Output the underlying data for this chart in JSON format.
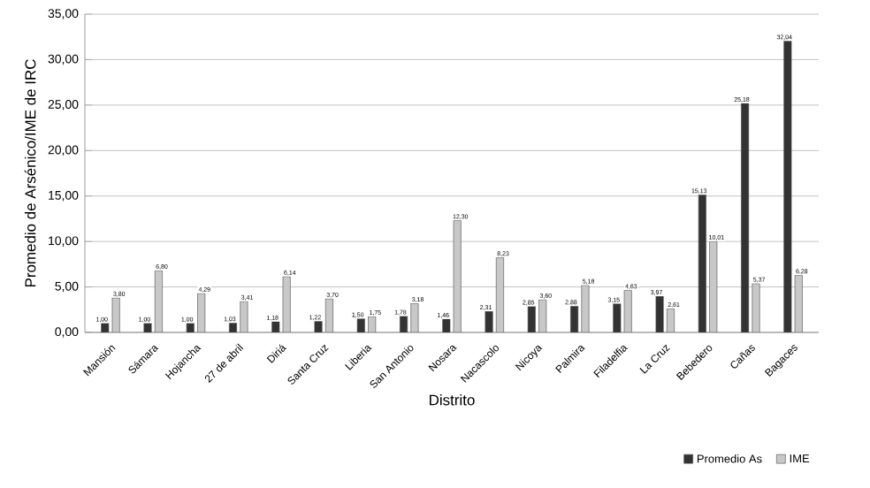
{
  "chart_data": {
    "type": "bar",
    "xlabel": "Distrito",
    "ylabel": "Promedio de Arsénico/IME de IRC",
    "categories": [
      "Mansión",
      "Sámara",
      "Hojancha",
      "27 de abril",
      "Diriá",
      "Santa Cruz",
      "Liberia",
      "San Antonio",
      "Nosara",
      "Nacascolo",
      "Nicoya",
      "Palmira",
      "Filadelfia",
      "La Cruz",
      "Bebedero",
      "Cañas",
      "Bagaces"
    ],
    "series": [
      {
        "name": "Promedio As",
        "color": "#333333",
        "values": [
          1.0,
          1.0,
          1.0,
          1.03,
          1.18,
          1.22,
          1.5,
          1.78,
          1.46,
          2.31,
          2.85,
          2.88,
          3.15,
          3.97,
          15.13,
          25.18,
          32.04
        ],
        "value_labels": [
          "1,00",
          "1,00",
          "1,00",
          "1,03",
          "1,18",
          "1,22",
          "1,50",
          "1,78",
          "1,46",
          "2,31",
          "2,85",
          "2,88",
          "3,15",
          "3,97",
          "15,13",
          "25,18",
          "32,04"
        ]
      },
      {
        "name": "IME",
        "color": "#c8c8c8",
        "values": [
          3.8,
          6.8,
          4.29,
          3.41,
          6.14,
          3.7,
          1.75,
          3.18,
          12.3,
          8.23,
          3.6,
          5.18,
          4.63,
          2.61,
          10.01,
          5.37,
          6.28
        ],
        "value_labels": [
          "3,80",
          "6,80",
          "4,29",
          "3,41",
          "6,14",
          "3,70",
          "1,75",
          "3,18",
          "12,30",
          "8,23",
          "3,60",
          "5,18",
          "4,63",
          "2,61",
          "10,01",
          "5,37",
          "6,28"
        ]
      }
    ],
    "ylim": [
      0,
      35
    ],
    "yticks": [
      {
        "value": 0,
        "label": "0,00"
      },
      {
        "value": 5,
        "label": "5,00"
      },
      {
        "value": 10,
        "label": "10,00"
      },
      {
        "value": 15,
        "label": "15,00"
      },
      {
        "value": 20,
        "label": "20,00"
      },
      {
        "value": 25,
        "label": "25,00"
      },
      {
        "value": 30,
        "label": "30,00"
      },
      {
        "value": 35,
        "label": "35,00"
      }
    ],
    "grid": "y",
    "legend": "bottom right"
  }
}
